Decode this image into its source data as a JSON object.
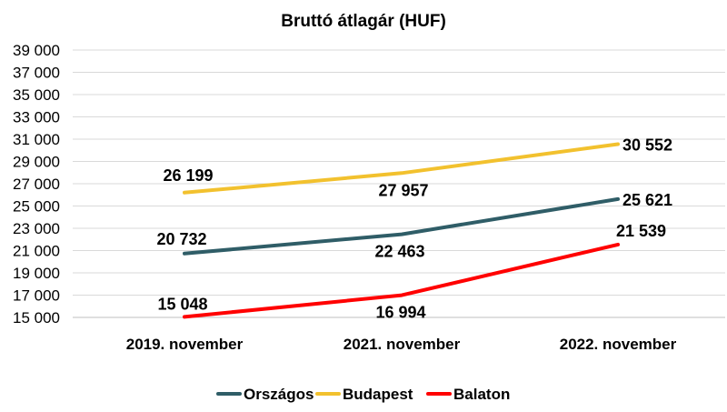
{
  "chart_data": {
    "type": "line",
    "title": "Bruttó átlagár (HUF)",
    "categories": [
      "2019. november",
      "2021. november",
      "2022. november"
    ],
    "ylim": [
      15000,
      39000
    ],
    "yticks": [
      "15 000",
      "17 000",
      "19 000",
      "21 000",
      "23 000",
      "25 000",
      "27 000",
      "29 000",
      "31 000",
      "33 000",
      "35 000",
      "37 000",
      "39 000"
    ],
    "ytick_values": [
      15000,
      17000,
      19000,
      21000,
      23000,
      25000,
      27000,
      29000,
      31000,
      33000,
      35000,
      37000,
      39000
    ],
    "grid": true,
    "legend_position": "bottom",
    "series": [
      {
        "name": "Országos",
        "color": "#2f5d67",
        "values": [
          20732,
          22463,
          25621
        ],
        "labels": [
          "20 732",
          "22 463",
          "25 621"
        ]
      },
      {
        "name": "Budapest",
        "color": "#f2c12e",
        "values": [
          26199,
          27957,
          30552
        ],
        "labels": [
          "26 199",
          "27 957",
          "30 552"
        ]
      },
      {
        "name": "Balaton",
        "color": "#ff0000",
        "values": [
          15048,
          16994,
          21539
        ],
        "labels": [
          "15 048",
          "16 994",
          "21 539"
        ]
      }
    ]
  }
}
